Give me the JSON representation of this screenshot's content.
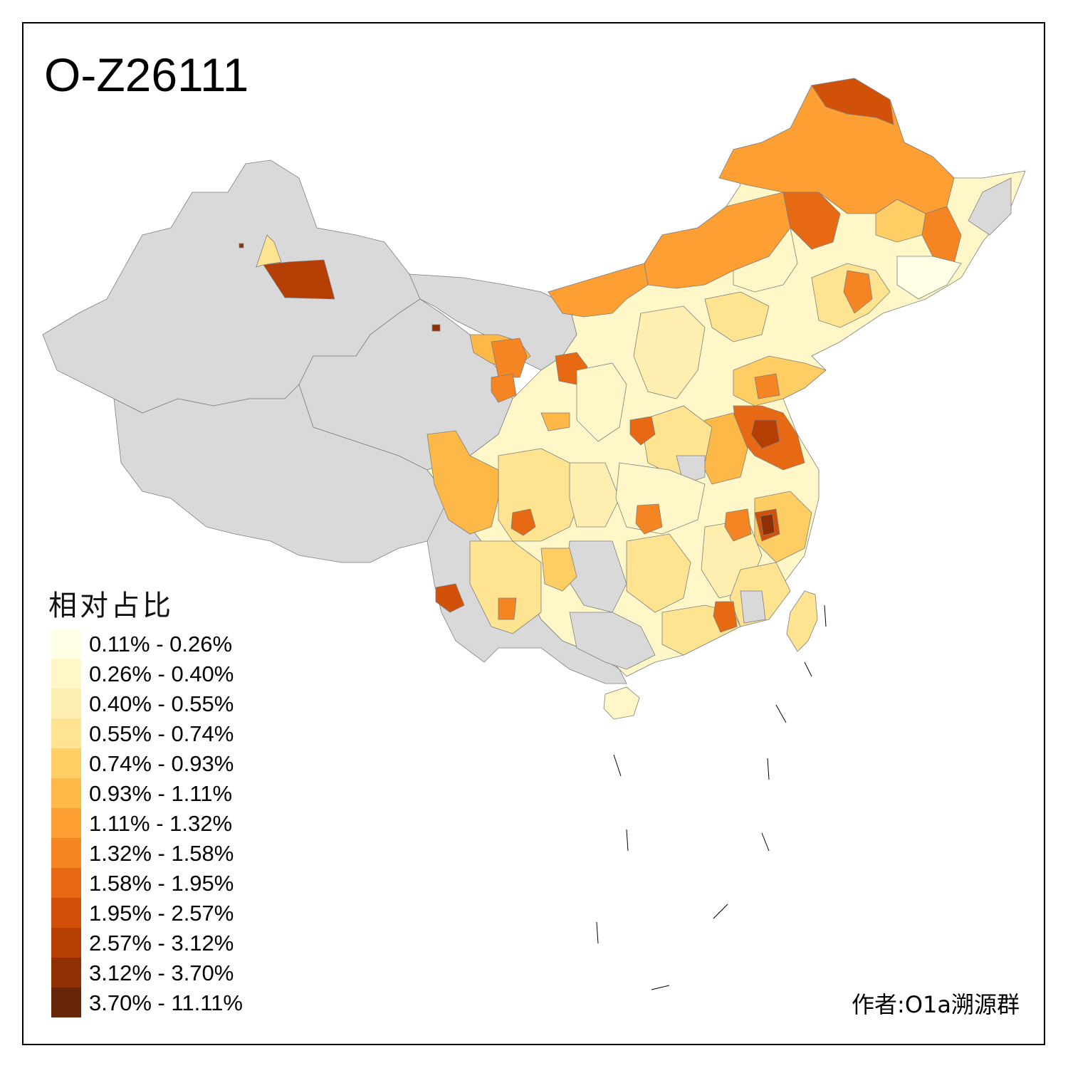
{
  "title": "O-Z26111",
  "legend": {
    "title": "相对占比",
    "bins": [
      {
        "label": "0.11% - 0.26%",
        "color": "#ffffe5"
      },
      {
        "label": "0.26% - 0.40%",
        "color": "#fff7c8"
      },
      {
        "label": "0.40% - 0.55%",
        "color": "#feeeb0"
      },
      {
        "label": "0.55% - 0.74%",
        "color": "#fee391"
      },
      {
        "label": "0.74% - 0.93%",
        "color": "#fece65"
      },
      {
        "label": "0.93% - 1.11%",
        "color": "#feb847"
      },
      {
        "label": "1.11% - 1.32%",
        "color": "#fe9f33"
      },
      {
        "label": "1.32% - 1.58%",
        "color": "#f58422"
      },
      {
        "label": "1.58% - 1.95%",
        "color": "#e76914"
      },
      {
        "label": "1.95% - 2.57%",
        "color": "#d25109"
      },
      {
        "label": "2.57% - 3.12%",
        "color": "#b43e04"
      },
      {
        "label": "3.12% - 3.70%",
        "color": "#8f3004"
      },
      {
        "label": "3.70% - 11.11%",
        "color": "#662506"
      }
    ]
  },
  "no_data_color": "#d9d9d9",
  "credit": "作者:O1a溯源群"
}
